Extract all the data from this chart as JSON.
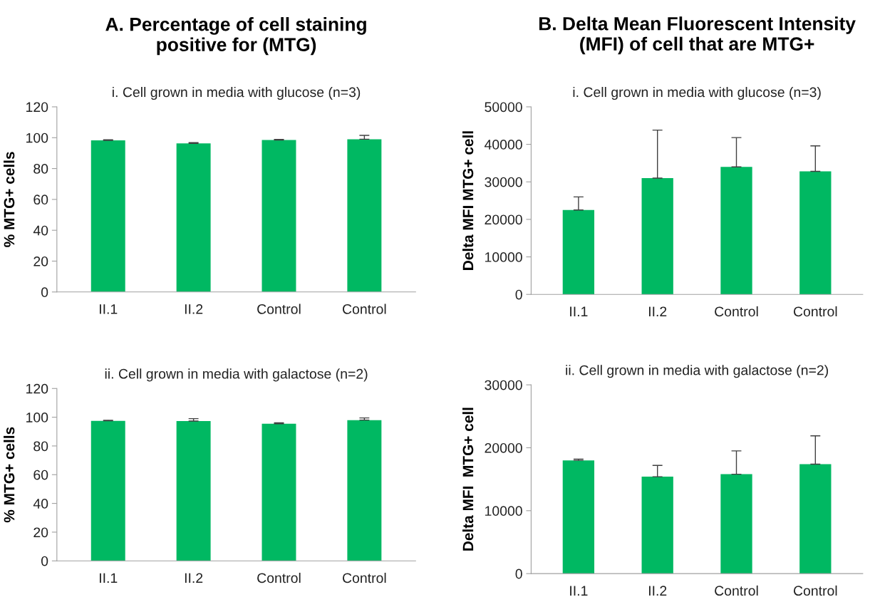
{
  "chart_data": [
    {
      "type": "bar",
      "title": "A. Percentage of cell staining\npositive for (MTG)",
      "subtitle": "i. Cell grown in media with glucose (n=3)",
      "ylabel": "% MTG+ cells",
      "categories": [
        "II.1",
        "II.2",
        "Control",
        "Control"
      ],
      "values": [
        98.3,
        96.3,
        98.5,
        99.0
      ],
      "errors": [
        [
          98.3,
          98.6
        ],
        [
          96.3,
          96.8
        ],
        [
          98.5,
          98.9
        ],
        [
          99.0,
          101.5
        ]
      ],
      "color": "#00b862",
      "ylim": [
        0,
        120
      ],
      "yticks": [
        0,
        20,
        40,
        60,
        80,
        100,
        120
      ],
      "grid": false,
      "legend": false
    },
    {
      "type": "bar",
      "title": "B. Delta Mean Fluorescent Intensity\n(MFI) of cell that are MTG+",
      "subtitle": "i. Cell grown in media with glucose (n=3)",
      "ylabel": "Delta MFI MTG+ cell",
      "categories": [
        "II.1",
        "II.2",
        "Control",
        "Control"
      ],
      "values": [
        22500,
        31000,
        34000,
        32800
      ],
      "errors": [
        [
          22500,
          26000
        ],
        [
          31000,
          43800
        ],
        [
          34000,
          41800
        ],
        [
          32800,
          39600
        ]
      ],
      "color": "#00b862",
      "ylim": [
        0,
        50000
      ],
      "yticks": [
        0,
        10000,
        20000,
        30000,
        40000,
        50000
      ],
      "grid": false,
      "legend": false
    },
    {
      "type": "bar",
      "subtitle": "ii. Cell grown in media with galactose (n=2)",
      "ylabel": "% MTG+ cells",
      "categories": [
        "II.1",
        "II.2",
        "Control",
        "Control"
      ],
      "values": [
        97.5,
        97.3,
        95.5,
        98.0
      ],
      "errors": [
        [
          97.5,
          97.9
        ],
        [
          97.3,
          99.0
        ],
        [
          95.5,
          96.1
        ],
        [
          98.0,
          99.5
        ]
      ],
      "color": "#00b862",
      "ylim": [
        0,
        120
      ],
      "yticks": [
        0,
        20,
        40,
        60,
        80,
        100,
        120
      ],
      "grid": false,
      "legend": false
    },
    {
      "type": "bar",
      "subtitle": "ii. Cell grown in media with galactose (n=2)",
      "ylabel": "Delta MFI  MTG+ cell",
      "categories": [
        "II.1",
        "II.2",
        "Control",
        "Control"
      ],
      "values": [
        18000,
        15400,
        15800,
        17400
      ],
      "errors": [
        [
          18000,
          18200
        ],
        [
          15400,
          17200
        ],
        [
          15800,
          19500
        ],
        [
          17400,
          21900
        ]
      ],
      "color": "#00b862",
      "ylim": [
        0,
        30000
      ],
      "yticks": [
        0,
        10000,
        20000,
        30000
      ],
      "grid": false,
      "legend": false
    }
  ]
}
